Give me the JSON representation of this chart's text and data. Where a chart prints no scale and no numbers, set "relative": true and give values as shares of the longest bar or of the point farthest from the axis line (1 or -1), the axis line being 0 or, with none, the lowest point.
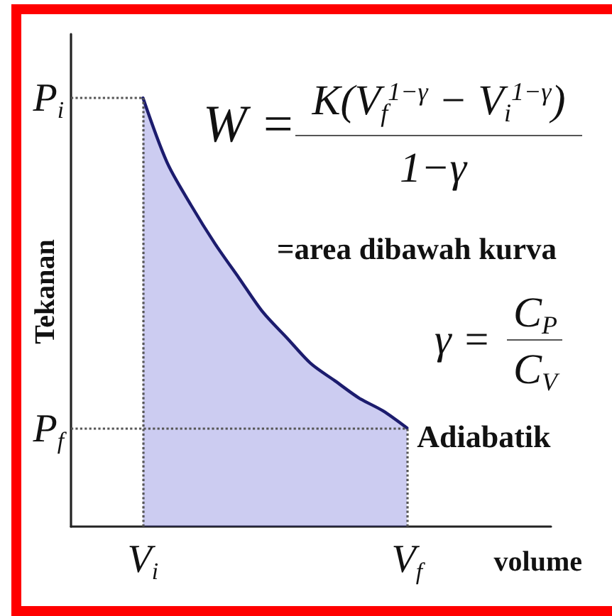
{
  "chart_data": {
    "type": "area",
    "relative": true,
    "xlabel": "volume",
    "ylabel": "Tekanan",
    "categories": [
      null,
      null,
      null,
      "V$_{i}$",
      null,
      null,
      null,
      null,
      null,
      null,
      null,
      null,
      null,
      null,
      "V$_{f}$",
      null,
      null,
      null,
      null,
      null,
      null
    ],
    "values": [
      null,
      null,
      null,
      1,
      0.85,
      0.75,
      0.66,
      0.58,
      0.5,
      0.44,
      0.38,
      0.34,
      0.3,
      0.27,
      0.23,
      null,
      null,
      null,
      null,
      null,
      null
    ],
    "color": "#3232c8",
    "marker": "none",
    "ref_lines": [
      {
        "axis": "y",
        "value": 1,
        "label": "P$_{i}$",
        "color": "#555555",
        "line_style": "dotted"
      },
      {
        "axis": "y",
        "value": 0.23,
        "label": "P$_{f}$",
        "color": "#555555",
        "line_style": "dotted"
      },
      {
        "axis": "x",
        "value": "V$_{i}$",
        "color": "#555555",
        "line_style": "dotted"
      },
      {
        "axis": "x",
        "value": "V$_{f}$",
        "color": "#555555",
        "line_style": "dotted"
      }
    ],
    "annotations": [
      "W =",
      "K(V$_{f}$$^{1−γ}$ − V$_{i}$$^{1−γ}$)",
      "1−γ",
      "=area dibawah kurva",
      "γ =",
      "C$_{P}$",
      "C$_{V}$",
      {
        "text": "Adiabatik",
        "x": "V$_{f}$",
        "y": 0.23
      }
    ]
  }
}
